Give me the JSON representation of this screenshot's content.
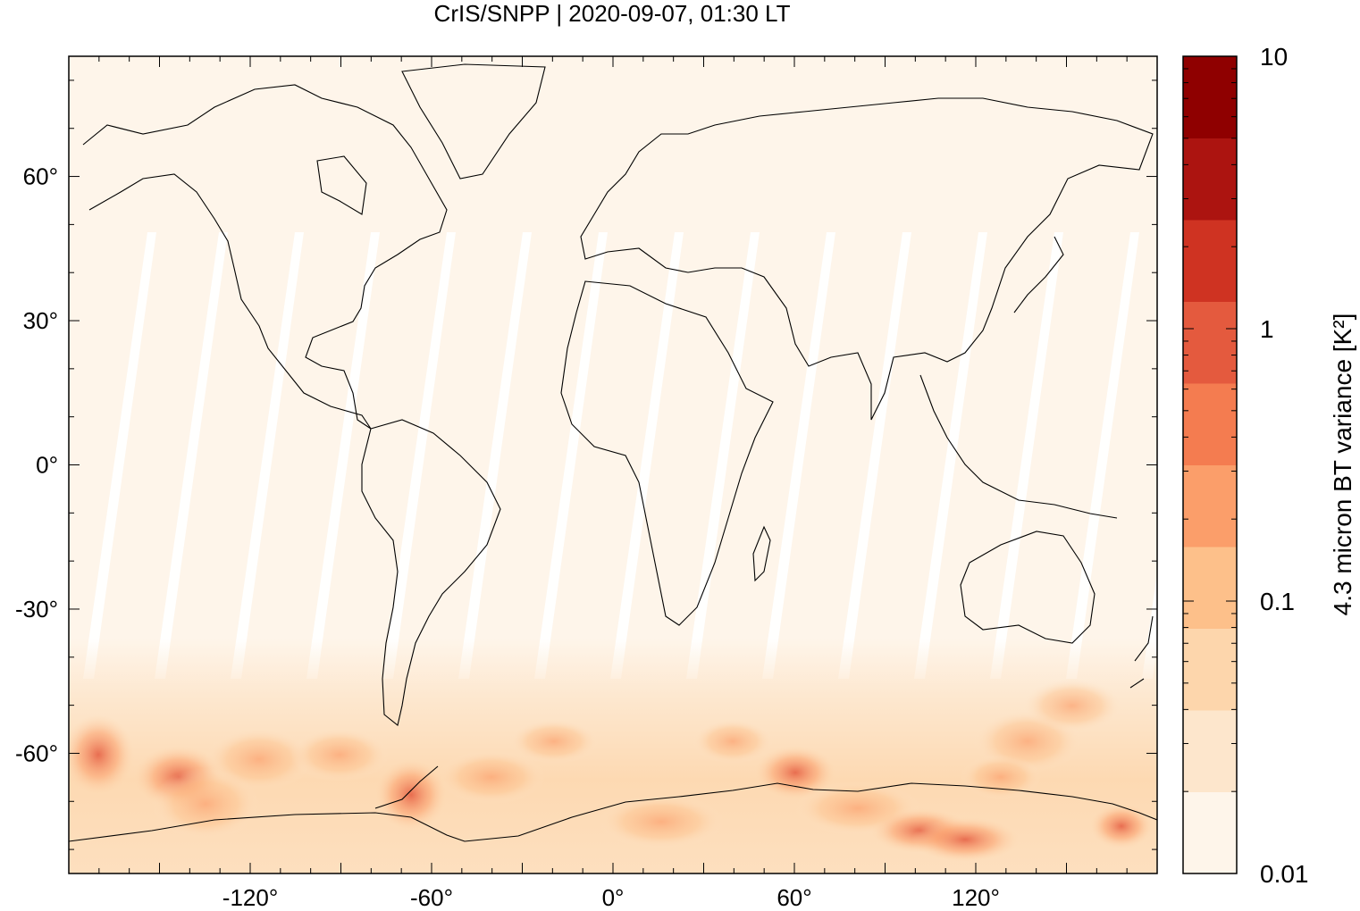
{
  "header": {
    "title": "CrIS/SNPP | 2020-09-07, 01:30 LT"
  },
  "map": {
    "projection": "equirectangular",
    "lon_range": [
      -180,
      180
    ],
    "lat_range": [
      -85,
      85
    ],
    "field_bg_color": "#fef5ea",
    "coastline_color": "#000000",
    "swath_gap_color": "#ffffff",
    "x_ticks": [
      {
        "value": -120,
        "label": "-120°"
      },
      {
        "value": -60,
        "label": "-60°"
      },
      {
        "value": 0,
        "label": "0°"
      },
      {
        "value": 60,
        "label": "60°"
      },
      {
        "value": 120,
        "label": "120°"
      }
    ],
    "y_ticks": [
      {
        "value": 60,
        "label": "60°"
      },
      {
        "value": 30,
        "label": "30°"
      },
      {
        "value": 0,
        "label": "0°"
      },
      {
        "value": -30,
        "label": "-30°"
      },
      {
        "value": -60,
        "label": "-60°"
      }
    ]
  },
  "colorbar": {
    "label": "4.3 micron BT variance [K²]",
    "scale": "log",
    "range": [
      0.01,
      10
    ],
    "tick_labels": [
      {
        "value": 10,
        "label": "10"
      },
      {
        "value": 1,
        "label": "1"
      },
      {
        "value": 0.1,
        "label": "0.1"
      },
      {
        "value": 0.01,
        "label": "0.01"
      }
    ],
    "colors": [
      "#fef5ea",
      "#fde6cc",
      "#fdd6ac",
      "#fdc08a",
      "#fb9e6a",
      "#f47c50",
      "#e45a3e",
      "#cf3322",
      "#ac1410",
      "#8f0000"
    ]
  }
}
